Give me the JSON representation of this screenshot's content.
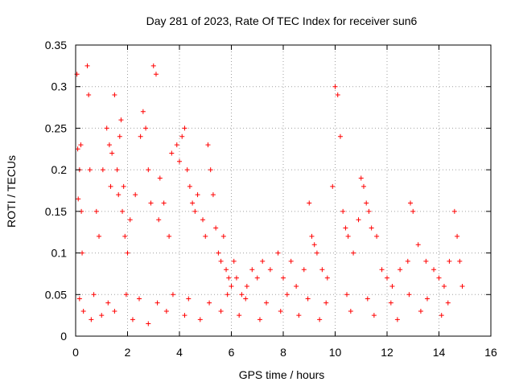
{
  "chart_data": {
    "type": "scatter",
    "title": "Day 281 of 2023, Rate Of TEC Index for receiver sun6",
    "xlabel": "GPS time / hours",
    "ylabel": "ROTI / TECUs",
    "xlim": [
      0,
      16
    ],
    "ylim": [
      0,
      0.35
    ],
    "x_ticks": [
      0,
      2,
      4,
      6,
      8,
      10,
      12,
      14,
      16
    ],
    "x_tick_labels": [
      "0",
      "2",
      "4",
      "6",
      "8",
      "10",
      "12",
      "14",
      "16"
    ],
    "y_ticks": [
      0,
      0.05,
      0.1,
      0.15,
      0.2,
      0.25,
      0.3,
      0.35
    ],
    "y_tick_labels": [
      "0",
      "0.05",
      "0.1",
      "0.15",
      "0.2",
      "0.25",
      "0.3",
      "0.35"
    ],
    "grid": true,
    "grid_style": "dotted",
    "marker": "+",
    "marker_color": "#ff0000",
    "series": [
      {
        "x": [
          0.05,
          0.08,
          0.1,
          0.15,
          0.2,
          0.22,
          0.25,
          0.45,
          0.5,
          0.55,
          0.8,
          0.9,
          1.05,
          1.2,
          1.3,
          1.35,
          1.4,
          1.5,
          1.6,
          1.65,
          1.7,
          1.75,
          1.8,
          1.85,
          1.9,
          2.0,
          2.1,
          2.3,
          2.5,
          2.6,
          2.7,
          2.8,
          2.9,
          3.0,
          3.1,
          3.2,
          3.25,
          3.4,
          3.6,
          3.7,
          3.9,
          4.0,
          4.1,
          4.2,
          4.3,
          4.4,
          4.5,
          4.6,
          4.7,
          4.9,
          5.0,
          5.1,
          5.2,
          5.3,
          5.4,
          5.5,
          5.6,
          5.7,
          5.8,
          5.9,
          6.0,
          6.1,
          6.2,
          6.4,
          6.6,
          6.8,
          7.0,
          7.2,
          7.5,
          7.8,
          8.0,
          8.3,
          8.5,
          8.8,
          9.0,
          9.1,
          9.2,
          9.3,
          9.5,
          9.7,
          9.9,
          10.0,
          10.1,
          10.2,
          10.3,
          10.4,
          10.5,
          10.7,
          10.9,
          11.0,
          11.1,
          11.2,
          11.3,
          11.4,
          11.6,
          11.8,
          12.0,
          12.2,
          12.5,
          12.8,
          12.9,
          13.0,
          13.2,
          13.5,
          13.8,
          14.0,
          14.2,
          14.4,
          14.6,
          14.7,
          14.8,
          14.9,
          0.3,
          0.6,
          1.0,
          1.5,
          2.2,
          2.8,
          3.5,
          4.2,
          4.8,
          5.6,
          6.3,
          7.1,
          7.9,
          8.6,
          9.4,
          10.6,
          11.5,
          12.4,
          13.3,
          14.1,
          0.15,
          0.7,
          1.25,
          1.95,
          2.45,
          3.15,
          3.75,
          4.35,
          5.15,
          5.85,
          6.55,
          7.35,
          8.15,
          8.95,
          9.65,
          10.45,
          11.25,
          12.15,
          12.85,
          13.55,
          14.35
        ],
        "y": [
          0.315,
          0.225,
          0.165,
          0.2,
          0.23,
          0.15,
          0.1,
          0.325,
          0.29,
          0.2,
          0.15,
          0.12,
          0.2,
          0.25,
          0.23,
          0.18,
          0.22,
          0.29,
          0.2,
          0.17,
          0.24,
          0.26,
          0.15,
          0.18,
          0.12,
          0.1,
          0.14,
          0.17,
          0.24,
          0.27,
          0.25,
          0.2,
          0.16,
          0.325,
          0.315,
          0.14,
          0.19,
          0.16,
          0.12,
          0.22,
          0.23,
          0.21,
          0.24,
          0.25,
          0.2,
          0.18,
          0.16,
          0.15,
          0.17,
          0.14,
          0.12,
          0.23,
          0.2,
          0.17,
          0.13,
          0.1,
          0.09,
          0.12,
          0.08,
          0.07,
          0.06,
          0.09,
          0.07,
          0.05,
          0.06,
          0.08,
          0.07,
          0.09,
          0.08,
          0.1,
          0.07,
          0.09,
          0.06,
          0.08,
          0.16,
          0.12,
          0.11,
          0.1,
          0.08,
          0.07,
          0.18,
          0.3,
          0.29,
          0.24,
          0.15,
          0.13,
          0.12,
          0.1,
          0.14,
          0.19,
          0.18,
          0.16,
          0.15,
          0.13,
          0.12,
          0.08,
          0.07,
          0.06,
          0.08,
          0.09,
          0.16,
          0.15,
          0.11,
          0.09,
          0.08,
          0.07,
          0.06,
          0.09,
          0.15,
          0.12,
          0.09,
          0.06,
          0.03,
          0.02,
          0.025,
          0.03,
          0.02,
          0.015,
          0.03,
          0.025,
          0.02,
          0.03,
          0.025,
          0.02,
          0.03,
          0.025,
          0.02,
          0.03,
          0.025,
          0.02,
          0.03,
          0.025,
          0.045,
          0.05,
          0.04,
          0.05,
          0.045,
          0.04,
          0.05,
          0.045,
          0.04,
          0.05,
          0.045,
          0.04,
          0.05,
          0.045,
          0.04,
          0.05,
          0.045,
          0.04,
          0.05,
          0.045,
          0.04
        ]
      }
    ]
  }
}
